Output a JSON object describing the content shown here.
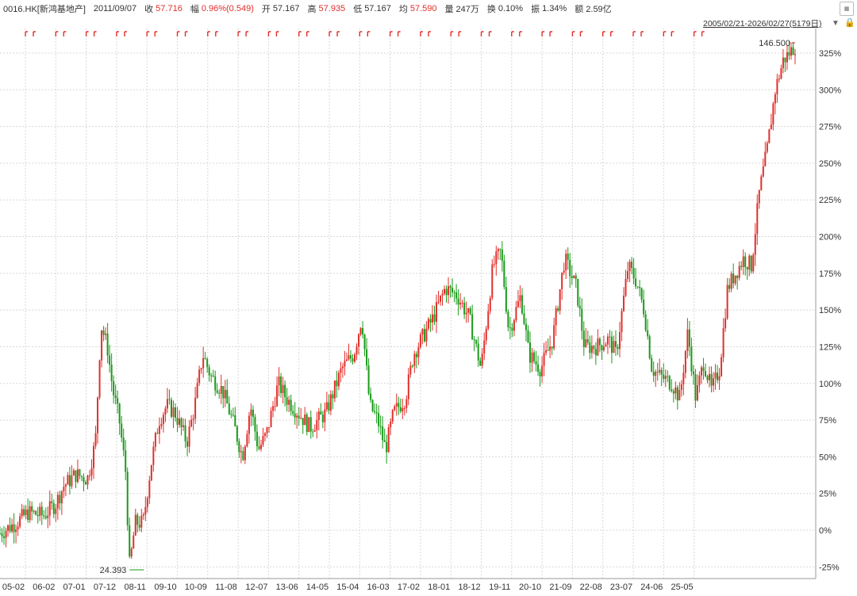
{
  "header": {
    "symbol": "0016.HK[新鸿基地产]",
    "date": "2011/09/07",
    "close_label": "收",
    "close": "57.716",
    "change_label": "幅",
    "change": "0.96%(0.549)",
    "open_label": "开",
    "open": "57.167",
    "high_label": "高",
    "high": "57.935",
    "low_label": "低",
    "low": "57.167",
    "avg_label": "均",
    "avg": "57.590",
    "vol_label": "量",
    "vol": "247万",
    "turnover_label": "换",
    "turnover": "0.10%",
    "amp_label": "振",
    "amp": "1.34%",
    "amount_label": "额",
    "amount": "2.59亿",
    "range": "2005/02/21-2026/02/27(5179日)"
  },
  "colors": {
    "up": "#e0302c",
    "down": "#1a9a1a",
    "grid": "#d8d8d8"
  },
  "chart_data": {
    "type": "candlestick",
    "x_ticks": [
      "05-02",
      "06-02",
      "07-01",
      "07-12",
      "08-11",
      "09-10",
      "10-09",
      "11-08",
      "12-07",
      "13-06",
      "14-05",
      "15-04",
      "16-03",
      "17-02",
      "18-01",
      "18-12",
      "19-11",
      "20-10",
      "21-09",
      "22-08",
      "23-07",
      "24-06",
      "25-05"
    ],
    "y_ticks": [
      "325%",
      "300%",
      "275%",
      "250%",
      "225%",
      "200%",
      "175%",
      "150%",
      "125%",
      "100%",
      "75%",
      "50%",
      "25%",
      "0%",
      "-25%"
    ],
    "ylim": [
      -25,
      325
    ],
    "annotations": [
      {
        "label": "146.500",
        "t": 1.0,
        "y": 332
      },
      {
        "label": "24.393",
        "t": 0.163,
        "y": -27
      }
    ],
    "series_profile": [
      [
        0.0,
        -2
      ],
      [
        0.02,
        5
      ],
      [
        0.035,
        12
      ],
      [
        0.055,
        10
      ],
      [
        0.07,
        18
      ],
      [
        0.08,
        30
      ],
      [
        0.095,
        38
      ],
      [
        0.11,
        35
      ],
      [
        0.12,
        60
      ],
      [
        0.127,
        140
      ],
      [
        0.135,
        125
      ],
      [
        0.142,
        95
      ],
      [
        0.15,
        75
      ],
      [
        0.158,
        40
      ],
      [
        0.163,
        -25
      ],
      [
        0.17,
        5
      ],
      [
        0.18,
        5
      ],
      [
        0.19,
        45
      ],
      [
        0.2,
        75
      ],
      [
        0.21,
        85
      ],
      [
        0.22,
        80
      ],
      [
        0.235,
        60
      ],
      [
        0.245,
        85
      ],
      [
        0.255,
        120
      ],
      [
        0.265,
        105
      ],
      [
        0.28,
        95
      ],
      [
        0.295,
        70
      ],
      [
        0.305,
        50
      ],
      [
        0.315,
        85
      ],
      [
        0.325,
        55
      ],
      [
        0.335,
        65
      ],
      [
        0.35,
        100
      ],
      [
        0.36,
        90
      ],
      [
        0.375,
        80
      ],
      [
        0.39,
        70
      ],
      [
        0.41,
        80
      ],
      [
        0.43,
        110
      ],
      [
        0.445,
        120
      ],
      [
        0.455,
        145
      ],
      [
        0.465,
        85
      ],
      [
        0.475,
        75
      ],
      [
        0.485,
        55
      ],
      [
        0.495,
        80
      ],
      [
        0.51,
        90
      ],
      [
        0.52,
        120
      ],
      [
        0.53,
        130
      ],
      [
        0.545,
        145
      ],
      [
        0.56,
        165
      ],
      [
        0.575,
        160
      ],
      [
        0.59,
        145
      ],
      [
        0.605,
        110
      ],
      [
        0.62,
        180
      ],
      [
        0.63,
        190
      ],
      [
        0.64,
        135
      ],
      [
        0.655,
        160
      ],
      [
        0.665,
        120
      ],
      [
        0.68,
        110
      ],
      [
        0.695,
        130
      ],
      [
        0.71,
        185
      ],
      [
        0.725,
        165
      ],
      [
        0.735,
        125
      ],
      [
        0.75,
        125
      ],
      [
        0.765,
        130
      ],
      [
        0.775,
        120
      ],
      [
        0.79,
        180
      ],
      [
        0.8,
        170
      ],
      [
        0.81,
        150
      ],
      [
        0.82,
        110
      ],
      [
        0.83,
        105
      ],
      [
        0.845,
        100
      ],
      [
        0.855,
        90
      ],
      [
        0.865,
        135
      ],
      [
        0.875,
        90
      ],
      [
        0.885,
        115
      ],
      [
        0.895,
        95
      ],
      [
        0.905,
        110
      ],
      [
        0.915,
        165
      ],
      [
        0.925,
        175
      ],
      [
        0.935,
        185
      ],
      [
        0.945,
        180
      ],
      [
        0.955,
        230
      ],
      [
        0.965,
        260
      ],
      [
        0.975,
        300
      ],
      [
        0.985,
        320
      ],
      [
        1.0,
        330
      ]
    ]
  }
}
